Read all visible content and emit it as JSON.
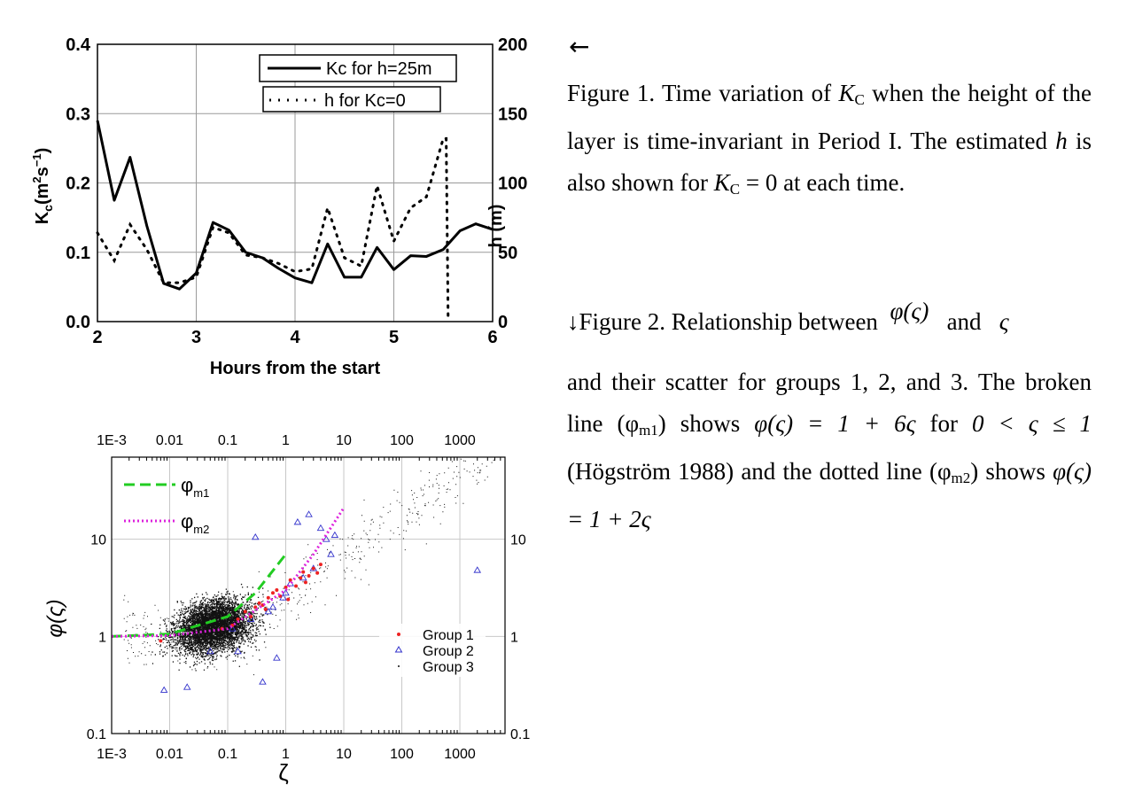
{
  "chart_data": [
    {
      "type": "line",
      "xlabel": "Hours from the start",
      "ylabel_left": "K_c (m^2 s^-1)",
      "ylabel_right": "h (m)",
      "xlim": [
        2,
        6
      ],
      "ylim_left": [
        0,
        0.4
      ],
      "ylim_right": [
        0,
        200
      ],
      "xticks": [
        "2",
        "3",
        "4",
        "5",
        "6"
      ],
      "yticks_left": [
        "0.0",
        "0.1",
        "0.2",
        "0.3",
        "0.4"
      ],
      "yticks_right": [
        "0",
        "50",
        "100",
        "150",
        "200"
      ],
      "grid": true,
      "legend_placement": "top-right",
      "series": [
        {
          "name": "Kc for h=25m",
          "axis": "left",
          "style": "solid",
          "x": [
            2.0,
            2.17,
            2.33,
            2.5,
            2.67,
            2.83,
            3.0,
            3.17,
            3.33,
            3.5,
            3.67,
            3.83,
            4.0,
            4.17,
            4.33,
            4.5,
            4.67,
            4.83,
            5.0,
            5.17,
            5.33,
            5.5,
            5.67,
            5.83,
            6.0
          ],
          "values": [
            0.29,
            0.175,
            0.237,
            0.138,
            0.055,
            0.047,
            0.07,
            0.143,
            0.132,
            0.1,
            0.092,
            0.077,
            0.063,
            0.056,
            0.112,
            0.064,
            0.064,
            0.107,
            0.075,
            0.095,
            0.094,
            0.104,
            0.131,
            0.141,
            0.133
          ]
        },
        {
          "name": "h for Kc=0",
          "axis": "right",
          "style": "dotted",
          "x": [
            2.0,
            2.17,
            2.33,
            2.5,
            2.67,
            2.83,
            3.0,
            3.17,
            3.33,
            3.5,
            3.67,
            3.83,
            4.0,
            4.17,
            4.33,
            4.5,
            4.67,
            4.83,
            5.0,
            5.17,
            5.33,
            5.5,
            5.53,
            5.55
          ],
          "values": [
            64,
            44,
            70,
            52,
            28,
            28,
            32,
            68,
            64,
            48,
            46,
            42,
            36,
            38,
            82,
            46,
            40,
            98,
            58,
            82,
            90,
            132,
            132,
            0
          ]
        }
      ]
    },
    {
      "type": "scatter",
      "xscale": "log",
      "yscale": "log",
      "xlabel": "ζ",
      "ylabel": "φ(ς)",
      "xlim": [
        0.001,
        6000
      ],
      "ylim": [
        0.1,
        70
      ],
      "xticks": [
        "1E-3",
        "0.01",
        "0.1",
        "1",
        "10",
        "100",
        "1000"
      ],
      "yticks": [
        "0.1",
        "1",
        "10"
      ],
      "grid": true,
      "legend_lines": [
        {
          "name": "φm1",
          "style": "dashed",
          "color": "#22cc22"
        },
        {
          "name": "φm2",
          "style": "dotted",
          "color": "#dd22dd"
        }
      ],
      "legend_markers": [
        "Group 1",
        "Group 2",
        "Group 3"
      ],
      "series": [
        {
          "name": "Group 1",
          "marker": "dot",
          "color": "#ee2222",
          "x": [
            0.007,
            0.08,
            0.12,
            0.15,
            0.2,
            0.25,
            0.3,
            0.35,
            0.4,
            0.5,
            0.6,
            0.7,
            0.8,
            1.0,
            1.2,
            1.5,
            1.8,
            2.0,
            2.5,
            3.0,
            3.5,
            4.0,
            2.2,
            1.1,
            0.45
          ],
          "values": [
            0.9,
            1.2,
            1.3,
            1.5,
            1.8,
            1.6,
            2.0,
            2.2,
            2.1,
            2.5,
            2.8,
            3.0,
            2.6,
            3.2,
            3.8,
            3.3,
            4.0,
            4.6,
            4.2,
            5.0,
            4.5,
            5.5,
            3.6,
            2.4,
            1.9
          ]
        },
        {
          "name": "Group 2",
          "marker": "triangle",
          "color": "#3333cc",
          "x": [
            0.008,
            0.02,
            0.05,
            0.15,
            0.3,
            0.4,
            0.6,
            0.9,
            1.2,
            1.6,
            2.0,
            2.5,
            3.0,
            4.0,
            5.0,
            6.0,
            7.0,
            0.7,
            1.0,
            0.25,
            0.12,
            0.5,
            2000
          ],
          "values": [
            0.28,
            0.3,
            0.7,
            0.7,
            10.5,
            0.34,
            2.0,
            2.5,
            3.5,
            15,
            4.0,
            18,
            5.0,
            13,
            10,
            7,
            11,
            0.6,
            2.8,
            1.5,
            1.2,
            1.8,
            4.8
          ]
        },
        {
          "name": "Group 3",
          "marker": "dot",
          "color": "#111111",
          "x": [],
          "values": []
        },
        {
          "name": "φm1",
          "marker": "line",
          "color": "#22cc22",
          "x": [
            0.001,
            0.01,
            0.1,
            0.3,
            1.0
          ],
          "values": [
            1.0,
            1.06,
            1.6,
            2.8,
            7.0
          ]
        },
        {
          "name": "φm2",
          "marker": "line",
          "color": "#dd22dd",
          "x": [
            0.001,
            0.01,
            0.1,
            1.0,
            3.0,
            10.0
          ],
          "values": [
            1.0,
            1.02,
            1.2,
            3.0,
            7.0,
            21.0
          ]
        }
      ]
    }
  ],
  "captions": {
    "arrow_left": "←",
    "fig1_a": "Figure 1. Time variation of ",
    "fig1_k": "K",
    "fig1_ksub": "C",
    "fig1_b": " when the height of the layer is time-invariant in Period I. The estimated ",
    "fig1_h": "h",
    "fig1_c": " is also shown for ",
    "fig1_d": " = 0 at each time.",
    "fig2_arrow": "↓",
    "fig2_a": "Figure 2. Relationship between",
    "fig2_phi": "φ(ς)",
    "fig2_and": "and",
    "fig2_zeta": "ς",
    "fig2_b": "and their scatter for groups 1, 2, and 3. The broken line (φ",
    "fig2_m1": "m1",
    "fig2_c": ") shows ",
    "fig2_f1": "φ(ς) = 1 + 6ς",
    "fig2_for": " for ",
    "fig2_range": "0 < ς ≤ 1",
    "fig2_d": " (Högström 1988) and the dotted line (φ",
    "fig2_m2": "m2",
    "fig2_e": ") shows ",
    "fig2_f2": "φ(ς) = 1 + 2ς"
  }
}
